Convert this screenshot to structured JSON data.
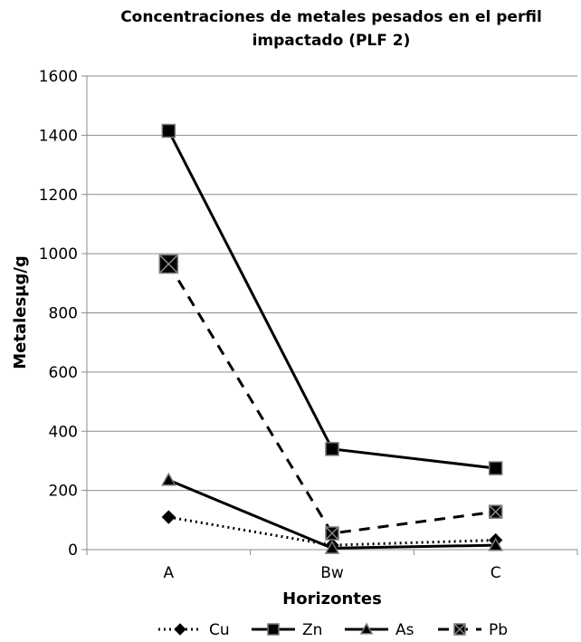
{
  "chart_data": {
    "type": "line",
    "title_line1": "Concentraciones de metales pesados en el perfil",
    "title_line2": "impactado (PLF 2)",
    "xlabel": "Horizontes",
    "ylabel": "Metalesμg/g",
    "categories": [
      "A",
      "Bw",
      "C"
    ],
    "ylim": [
      0,
      1600
    ],
    "yticks": [
      0,
      200,
      400,
      600,
      800,
      1000,
      1200,
      1400,
      1600
    ],
    "grid": true,
    "legend_position": "bottom",
    "series": [
      {
        "name": "Cu",
        "values": [
          110,
          15,
          32
        ],
        "marker": "diamond",
        "line": "dotted",
        "color": "#000000"
      },
      {
        "name": "Zn",
        "values": [
          1415,
          340,
          275
        ],
        "marker": "square",
        "line": "solid",
        "color": "#000000"
      },
      {
        "name": "As",
        "values": [
          235,
          5,
          15
        ],
        "marker": "triangle",
        "line": "solid",
        "color": "#000000"
      },
      {
        "name": "Pb",
        "values": [
          965,
          55,
          128
        ],
        "marker": "x-square",
        "line": "dashed",
        "color": "#000000"
      }
    ]
  }
}
